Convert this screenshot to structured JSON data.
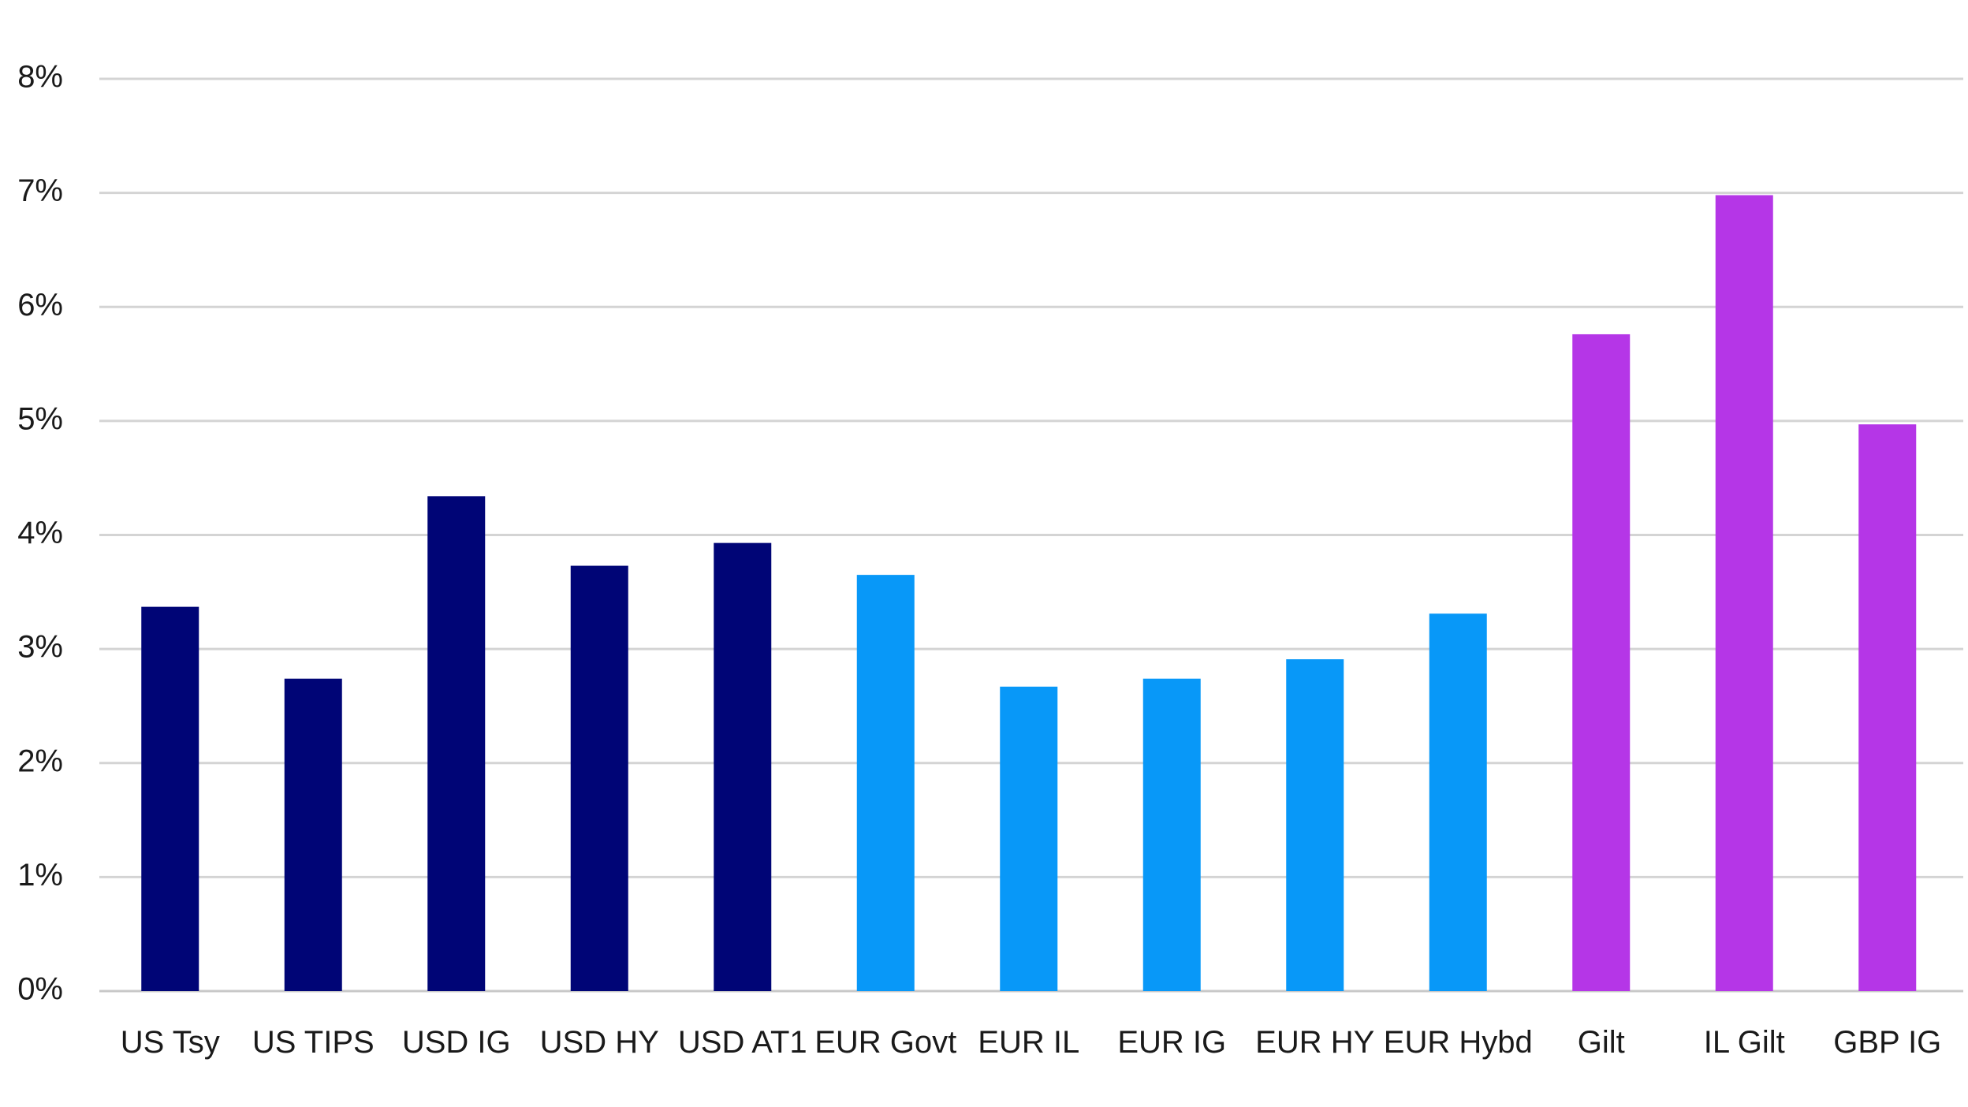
{
  "chart_data": {
    "type": "bar",
    "title": "",
    "xlabel": "",
    "ylabel": "",
    "ylim": [
      0,
      8
    ],
    "yticks": [
      0,
      1,
      2,
      3,
      4,
      5,
      6,
      7,
      8
    ],
    "ytick_labels": [
      "0%",
      "1%",
      "2%",
      "3%",
      "4%",
      "5%",
      "6%",
      "7%",
      "8%"
    ],
    "grid": true,
    "legend": "none",
    "categories": [
      "US Tsy",
      "US TIPS",
      "USD IG",
      "USD HY",
      "USD AT1",
      "EUR Govt",
      "EUR IL",
      "EUR IG",
      "EUR HY",
      "EUR Hybd",
      "Gilt",
      "IL Gilt",
      "GBP IG"
    ],
    "values": [
      3.37,
      2.74,
      4.34,
      3.73,
      3.93,
      3.65,
      2.67,
      2.74,
      2.91,
      3.31,
      5.76,
      6.98,
      4.97
    ],
    "bar_colors": [
      "#000576",
      "#000576",
      "#000576",
      "#000576",
      "#000576",
      "#0898f8",
      "#0898f8",
      "#0898f8",
      "#0898f8",
      "#0898f8",
      "#b536e7",
      "#b536e7",
      "#b536e7"
    ]
  }
}
